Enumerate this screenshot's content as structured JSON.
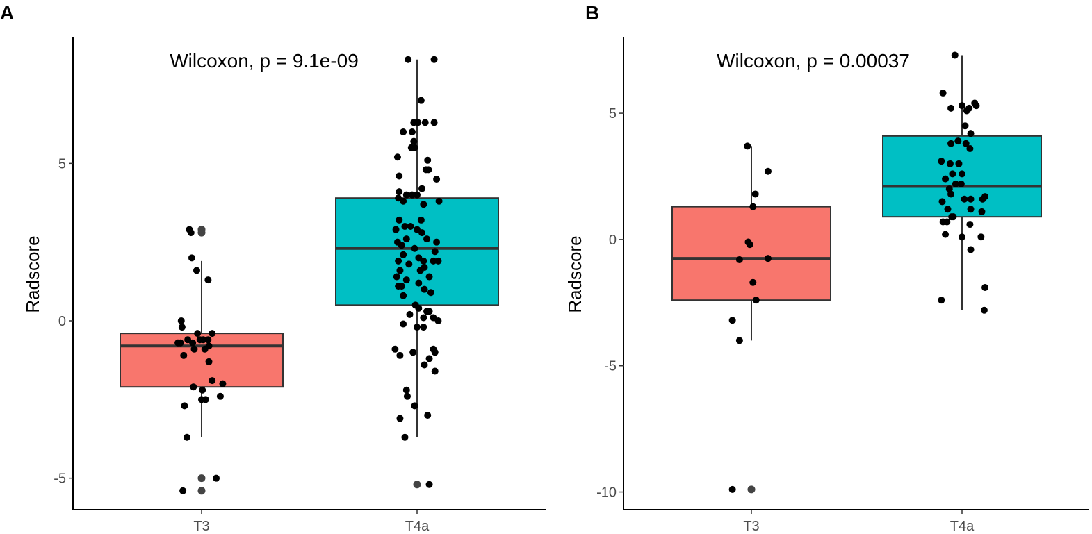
{
  "chart_data": [
    {
      "panel_label": "A",
      "type": "box",
      "annotation": "Wilcoxon, p = 9.1e-09",
      "xlabel": "",
      "ylabel": "Radscore",
      "ylim": [
        -6.0,
        9.0
      ],
      "yticks": [
        5,
        0,
        -5
      ],
      "ytick_labels": [
        "5",
        "0",
        "-5"
      ],
      "categories": [
        "T3",
        "T4a"
      ],
      "colors": [
        "#F8766D",
        "#00BFC4"
      ],
      "boxes": [
        {
          "q1": -2.1,
          "median": -0.8,
          "q3": -0.4,
          "whisker_low": -3.7,
          "whisker_high": 1.9,
          "outliers": [
            2.9,
            2.8,
            -5.0,
            -5.4
          ]
        },
        {
          "q1": 0.5,
          "median": 2.3,
          "q3": 3.9,
          "whisker_low": -3.7,
          "whisker_high": 8.3,
          "outliers": [
            -5.2
          ]
        }
      ],
      "points": [
        [
          {
            "x": -0.15,
            "y": 2.9
          },
          {
            "x": -0.13,
            "y": 2.8
          },
          {
            "x": -0.12,
            "y": 2.0
          },
          {
            "x": -0.06,
            "y": 1.6
          },
          {
            "x": 0.08,
            "y": 1.3
          },
          {
            "x": -0.25,
            "y": 0.0
          },
          {
            "x": -0.24,
            "y": -0.2
          },
          {
            "x": -0.05,
            "y": -0.4
          },
          {
            "x": 0.13,
            "y": -0.4
          },
          {
            "x": -0.29,
            "y": -0.7
          },
          {
            "x": -0.17,
            "y": -0.6
          },
          {
            "x": -0.11,
            "y": -0.7
          },
          {
            "x": -0.26,
            "y": -0.7
          },
          {
            "x": -0.02,
            "y": -0.6
          },
          {
            "x": 0.02,
            "y": -0.6
          },
          {
            "x": 0.08,
            "y": -0.6
          },
          {
            "x": -0.09,
            "y": -0.9
          },
          {
            "x": 0.09,
            "y": -0.8
          },
          {
            "x": 0.04,
            "y": -0.9
          },
          {
            "x": -0.22,
            "y": -1.1
          },
          {
            "x": 0.09,
            "y": -1.3
          },
          {
            "x": 0.13,
            "y": -1.9
          },
          {
            "x": 0.26,
            "y": -2.0
          },
          {
            "x": -0.1,
            "y": -2.1
          },
          {
            "x": 0.01,
            "y": -2.2
          },
          {
            "x": 0.0,
            "y": -2.5
          },
          {
            "x": 0.05,
            "y": -2.5
          },
          {
            "x": 0.23,
            "y": -2.4
          },
          {
            "x": -0.21,
            "y": -2.7
          },
          {
            "x": -0.18,
            "y": -3.7
          },
          {
            "x": 0.18,
            "y": -5.0
          },
          {
            "x": -0.23,
            "y": -5.4
          }
        ],
        [
          {
            "x": -0.11,
            "y": 8.3
          },
          {
            "x": 0.21,
            "y": 8.3
          },
          {
            "x": 0.05,
            "y": 7.0
          },
          {
            "x": -0.04,
            "y": 6.3
          },
          {
            "x": 0.1,
            "y": 6.3
          },
          {
            "x": 0.21,
            "y": 6.3
          },
          {
            "x": -0.17,
            "y": 6.0
          },
          {
            "x": -0.06,
            "y": 6.0
          },
          {
            "x": 0.01,
            "y": 6.3
          },
          {
            "x": -0.07,
            "y": 5.5
          },
          {
            "x": -0.03,
            "y": 5.5
          },
          {
            "x": -0.04,
            "y": 5.7
          },
          {
            "x": -0.24,
            "y": 5.2
          },
          {
            "x": 0.13,
            "y": 5.1
          },
          {
            "x": 0.14,
            "y": 4.8
          },
          {
            "x": 0.11,
            "y": 4.8
          },
          {
            "x": -0.22,
            "y": 4.6
          },
          {
            "x": 0.24,
            "y": 4.5
          },
          {
            "x": -0.22,
            "y": 4.1
          },
          {
            "x": -0.13,
            "y": 4.0
          },
          {
            "x": -0.06,
            "y": 4.0
          },
          {
            "x": 0.06,
            "y": 4.2
          },
          {
            "x": 0.0,
            "y": 4.0
          },
          {
            "x": -0.23,
            "y": 3.9
          },
          {
            "x": -0.17,
            "y": 3.8
          },
          {
            "x": 0.27,
            "y": 3.8
          },
          {
            "x": 0.08,
            "y": 3.7
          },
          {
            "x": -0.22,
            "y": 3.2
          },
          {
            "x": 0.05,
            "y": 3.2
          },
          {
            "x": -0.15,
            "y": 3.0
          },
          {
            "x": -0.26,
            "y": 2.9
          },
          {
            "x": 0.0,
            "y": 2.9
          },
          {
            "x": -0.08,
            "y": 3.0
          },
          {
            "x": 0.06,
            "y": 2.8
          },
          {
            "x": -0.24,
            "y": 2.5
          },
          {
            "x": 0.12,
            "y": 2.6
          },
          {
            "x": 0.24,
            "y": 2.5
          },
          {
            "x": -0.19,
            "y": 2.4
          },
          {
            "x": -0.13,
            "y": 2.6
          },
          {
            "x": -0.03,
            "y": 2.3
          },
          {
            "x": 0.22,
            "y": 2.2
          },
          {
            "x": -0.17,
            "y": 2.1
          },
          {
            "x": -0.23,
            "y": 1.9
          },
          {
            "x": -0.1,
            "y": 1.8
          },
          {
            "x": 0.02,
            "y": 2.0
          },
          {
            "x": 0.08,
            "y": 1.9
          },
          {
            "x": 0.2,
            "y": 1.9
          },
          {
            "x": 0.26,
            "y": 1.9
          },
          {
            "x": 0.09,
            "y": 1.7
          },
          {
            "x": -0.21,
            "y": 1.6
          },
          {
            "x": 0.04,
            "y": 1.6
          },
          {
            "x": -0.25,
            "y": 1.4
          },
          {
            "x": 0.15,
            "y": 1.4
          },
          {
            "x": -0.13,
            "y": 1.3
          },
          {
            "x": 0.02,
            "y": 1.2
          },
          {
            "x": -0.23,
            "y": 1.1
          },
          {
            "x": -0.19,
            "y": 1.1
          },
          {
            "x": 0.09,
            "y": 1.0
          },
          {
            "x": -0.17,
            "y": 0.8
          },
          {
            "x": 0.17,
            "y": 0.9
          },
          {
            "x": -0.02,
            "y": 0.5
          },
          {
            "x": 0.02,
            "y": 0.4
          },
          {
            "x": 0.12,
            "y": 0.3
          },
          {
            "x": 0.15,
            "y": 0.3
          },
          {
            "x": -0.09,
            "y": 0.2
          },
          {
            "x": 0.08,
            "y": 0.1
          },
          {
            "x": 0.2,
            "y": 0.1
          },
          {
            "x": 0.26,
            "y": 0.0
          },
          {
            "x": -0.17,
            "y": -0.1
          },
          {
            "x": 0.0,
            "y": -0.2
          },
          {
            "x": 0.08,
            "y": -0.2
          },
          {
            "x": 0.2,
            "y": -0.9
          },
          {
            "x": 0.22,
            "y": -1.0
          },
          {
            "x": -0.27,
            "y": -0.9
          },
          {
            "x": -0.21,
            "y": -1.1
          },
          {
            "x": -0.05,
            "y": -1.0
          },
          {
            "x": 0.15,
            "y": -1.2
          },
          {
            "x": 0.09,
            "y": -1.4
          },
          {
            "x": 0.22,
            "y": -1.6
          },
          {
            "x": -0.13,
            "y": -2.2
          },
          {
            "x": -0.12,
            "y": -2.4
          },
          {
            "x": -0.03,
            "y": -2.7
          },
          {
            "x": -0.21,
            "y": -3.1
          },
          {
            "x": 0.13,
            "y": -3.0
          },
          {
            "x": -0.15,
            "y": -3.7
          },
          {
            "x": 0.15,
            "y": -5.2
          }
        ]
      ]
    },
    {
      "panel_label": "B",
      "type": "box",
      "annotation": "Wilcoxon, p = 0.00037",
      "xlabel": "",
      "ylabel": "Radscore",
      "ylim": [
        -10.7,
        8.0
      ],
      "yticks": [
        5,
        0,
        -5,
        -10
      ],
      "ytick_labels": [
        "5",
        "0",
        "-5",
        "-10"
      ],
      "categories": [
        "T3",
        "T4a"
      ],
      "colors": [
        "#F8766D",
        "#00BFC4"
      ],
      "boxes": [
        {
          "q1": -2.4,
          "median": -0.75,
          "q3": 1.3,
          "whisker_low": -4.0,
          "whisker_high": 3.7,
          "outliers": [
            -9.9
          ]
        },
        {
          "q1": 0.9,
          "median": 2.1,
          "q3": 4.1,
          "whisker_low": -2.8,
          "whisker_high": 7.3,
          "outliers": []
        }
      ],
      "points": [
        [
          {
            "x": -0.05,
            "y": 3.7
          },
          {
            "x": 0.21,
            "y": 2.7
          },
          {
            "x": 0.05,
            "y": 1.8
          },
          {
            "x": 0.02,
            "y": 1.3
          },
          {
            "x": -0.04,
            "y": -0.1
          },
          {
            "x": -0.02,
            "y": -0.2
          },
          {
            "x": -0.15,
            "y": -0.8
          },
          {
            "x": 0.21,
            "y": -0.75
          },
          {
            "x": 0.02,
            "y": -1.7
          },
          {
            "x": 0.06,
            "y": -2.4
          },
          {
            "x": -0.24,
            "y": -3.2
          },
          {
            "x": -0.15,
            "y": -4.0
          },
          {
            "x": -0.24,
            "y": -9.9
          }
        ],
        [
          {
            "x": -0.09,
            "y": 7.3
          },
          {
            "x": -0.24,
            "y": 5.8
          },
          {
            "x": -0.14,
            "y": 5.2
          },
          {
            "x": 0.0,
            "y": 5.3
          },
          {
            "x": 0.06,
            "y": 5.1
          },
          {
            "x": 0.09,
            "y": 5.2
          },
          {
            "x": 0.16,
            "y": 5.4
          },
          {
            "x": 0.18,
            "y": 5.3
          },
          {
            "x": 0.04,
            "y": 4.5
          },
          {
            "x": 0.11,
            "y": 4.2
          },
          {
            "x": -0.05,
            "y": 3.9
          },
          {
            "x": -0.14,
            "y": 3.8
          },
          {
            "x": 0.05,
            "y": 3.8
          },
          {
            "x": 0.1,
            "y": 3.6
          },
          {
            "x": -0.26,
            "y": 3.1
          },
          {
            "x": -0.15,
            "y": 3.0
          },
          {
            "x": -0.04,
            "y": 3.0
          },
          {
            "x": 0.0,
            "y": 2.6
          },
          {
            "x": -0.21,
            "y": 2.4
          },
          {
            "x": -0.12,
            "y": 2.6
          },
          {
            "x": -0.08,
            "y": 2.2
          },
          {
            "x": -0.01,
            "y": 2.2
          },
          {
            "x": -0.16,
            "y": 2.0
          },
          {
            "x": -0.14,
            "y": 1.8
          },
          {
            "x": 0.03,
            "y": 1.6
          },
          {
            "x": 0.11,
            "y": 1.6
          },
          {
            "x": 0.26,
            "y": 1.6
          },
          {
            "x": 0.29,
            "y": 1.7
          },
          {
            "x": -0.25,
            "y": 1.5
          },
          {
            "x": -0.18,
            "y": 1.2
          },
          {
            "x": 0.11,
            "y": 1.2
          },
          {
            "x": 0.25,
            "y": 1.1
          },
          {
            "x": -0.13,
            "y": 0.9
          },
          {
            "x": -0.11,
            "y": 0.9
          },
          {
            "x": -0.19,
            "y": 0.7
          },
          {
            "x": -0.24,
            "y": 0.7
          },
          {
            "x": 0.1,
            "y": 0.6
          },
          {
            "x": -0.21,
            "y": 0.2
          },
          {
            "x": 0.0,
            "y": 0.1
          },
          {
            "x": 0.24,
            "y": 0.1
          },
          {
            "x": 0.11,
            "y": -0.4
          },
          {
            "x": -0.26,
            "y": -2.4
          },
          {
            "x": 0.29,
            "y": -1.9
          },
          {
            "x": 0.28,
            "y": -2.8
          }
        ]
      ]
    }
  ]
}
